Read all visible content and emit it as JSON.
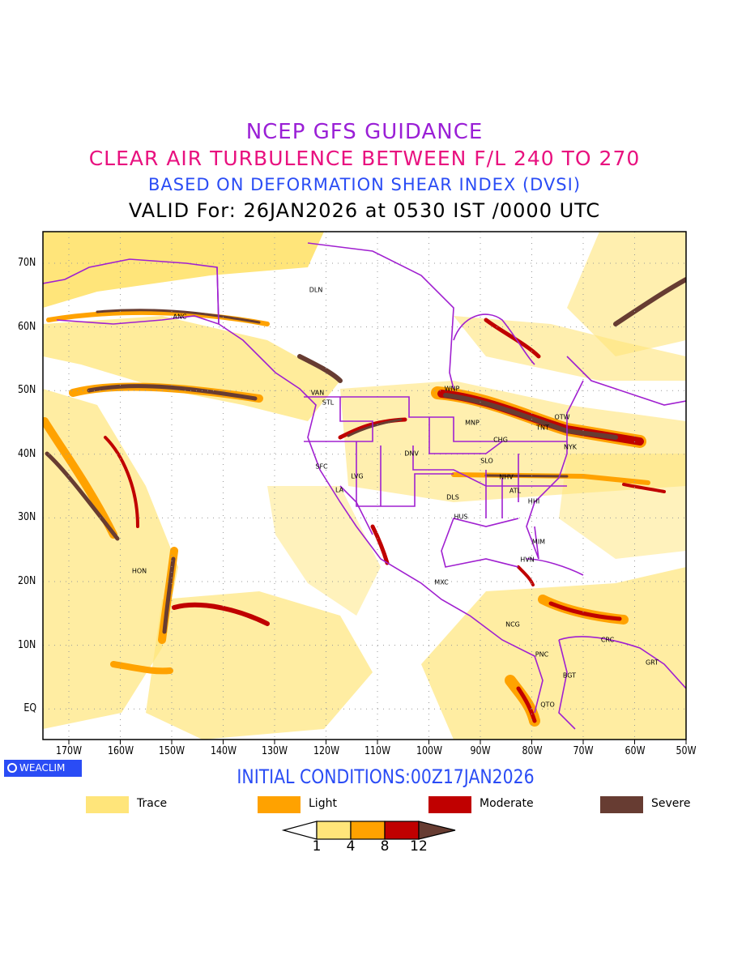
{
  "titles": {
    "line1": "NCEP GFS GUIDANCE",
    "line2": "CLEAR AIR TURBULENCE BETWEEN F/L 240 TO 270",
    "line3": "BASED ON DEFORMATION SHEAR INDEX (DVSI)",
    "line4": "VALID For: 26JAN2026 at 0530 IST /0000 UTC"
  },
  "axes": {
    "lat_labels": [
      "70N",
      "60N",
      "50N",
      "40N",
      "30N",
      "20N",
      "10N",
      "EQ"
    ],
    "lon_labels": [
      "170W",
      "160W",
      "150W",
      "140W",
      "130W",
      "120W",
      "110W",
      "100W",
      "90W",
      "80W",
      "70W",
      "60W",
      "50W"
    ]
  },
  "cities": [
    "DLN",
    "ANC",
    "VAN",
    "STL",
    "WNP",
    "MNP",
    "OTW",
    "TNT",
    "CHG",
    "NYK",
    "DNV",
    "SFC",
    "SLO",
    "LVG",
    "NHV",
    "ATL",
    "LA",
    "DLS",
    "HHI",
    "HUS",
    "MIM",
    "HON",
    "HVN",
    "MXC",
    "NCG",
    "CRC",
    "GRT",
    "PNC",
    "BGT",
    "QTO"
  ],
  "logo": "WEACLIM",
  "initial_conditions": "INITIAL CONDITIONS:00Z17JAN2026",
  "legend": [
    {
      "label": "Trace",
      "color": "#ffe57a"
    },
    {
      "label": "Light",
      "color": "#ffa200"
    },
    {
      "label": "Moderate",
      "color": "#c00000"
    },
    {
      "label": "Severe",
      "color": "#673c32"
    }
  ],
  "colorbar": {
    "ticks": [
      "1",
      "4",
      "8",
      "12"
    ]
  },
  "colors": {
    "coast": "#a020d0",
    "grid": "#999999"
  }
}
